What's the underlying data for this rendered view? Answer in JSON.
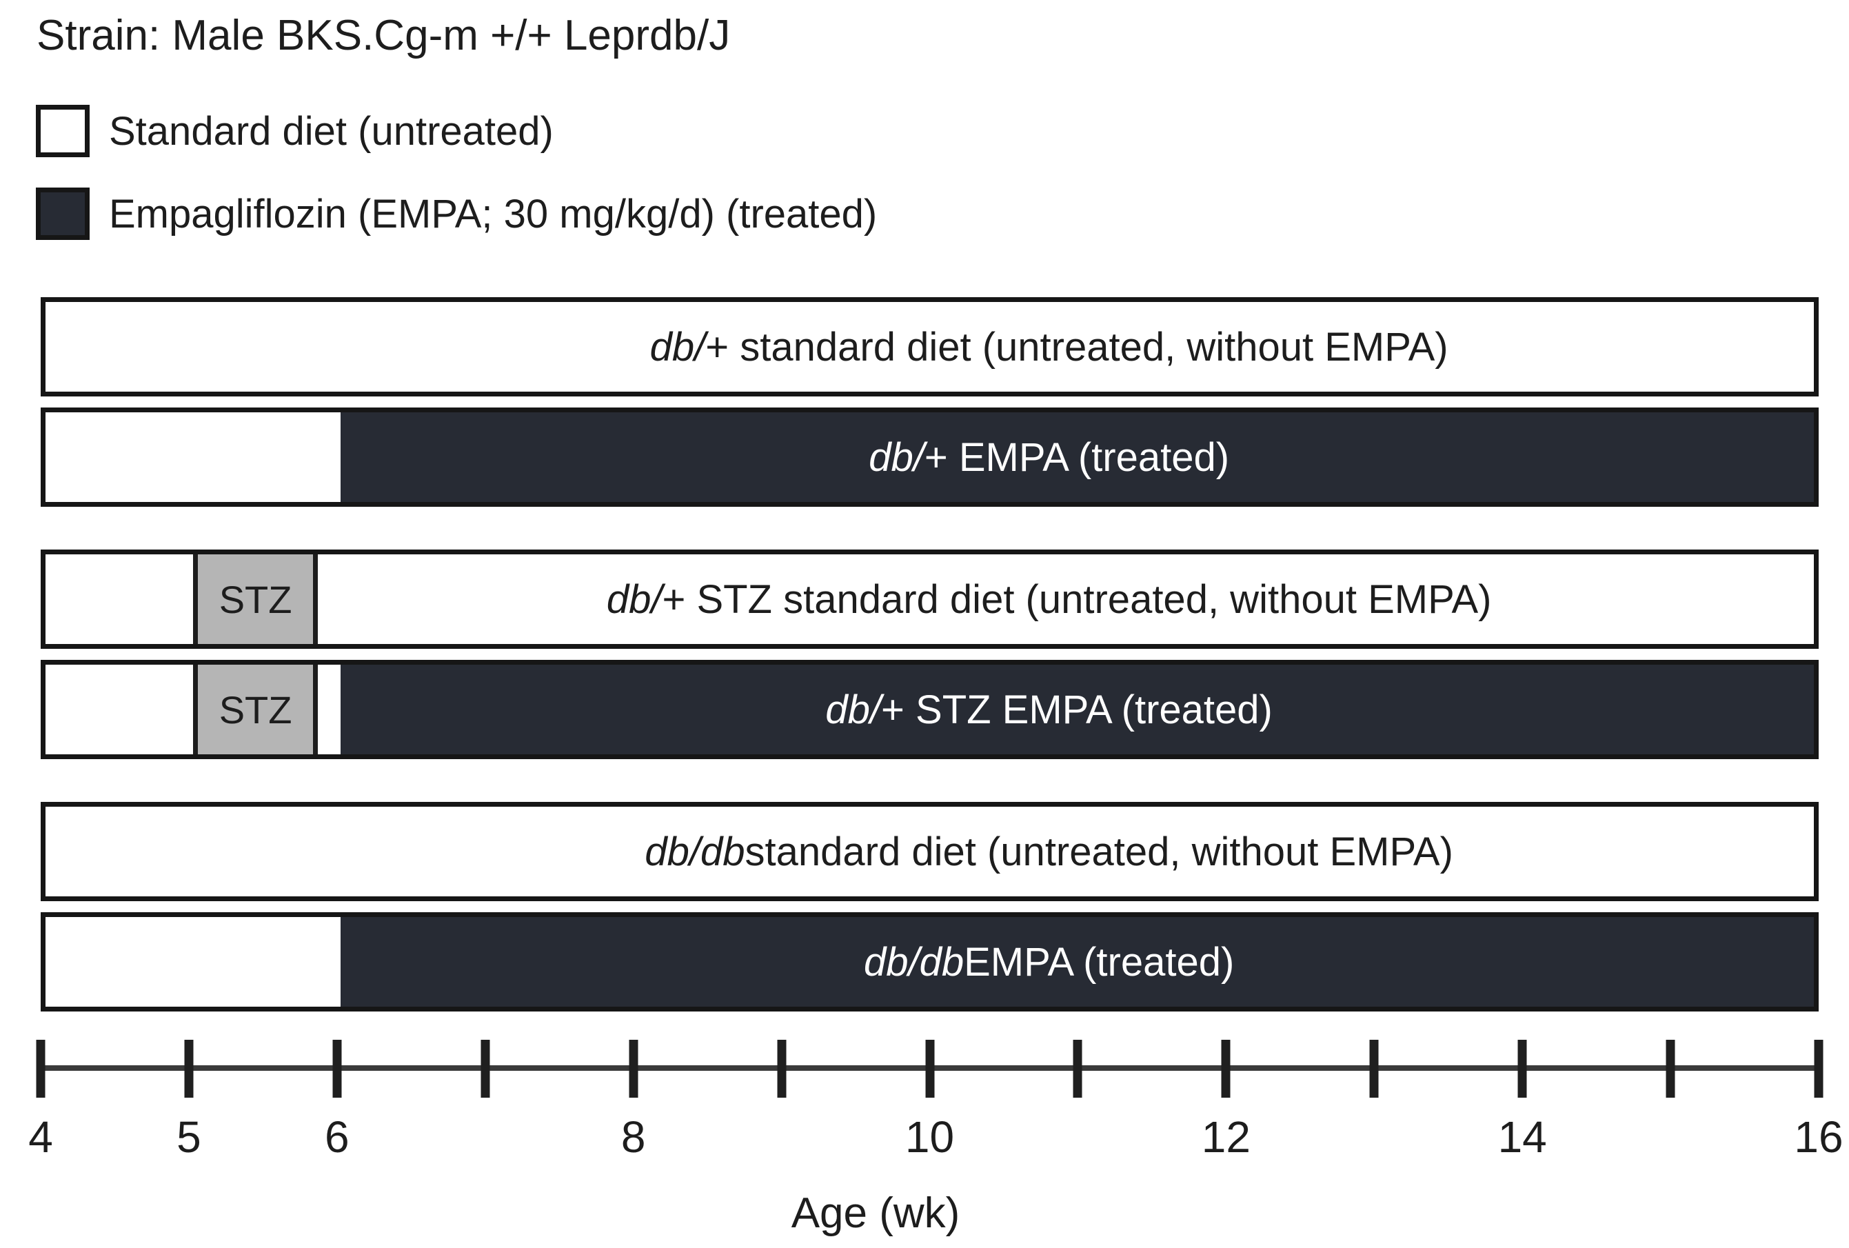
{
  "title": "Strain: Male BKS.Cg-m +/+ Leprdb/J",
  "colors": {
    "treated": "#272b34",
    "untreated": "#ffffff",
    "stz": "#b5b5b5",
    "border": "#161616",
    "text": "#1d1d1d"
  },
  "legend": [
    {
      "swatch": "untreated",
      "label": "Standard diet (untreated)"
    },
    {
      "swatch": "treated",
      "label": "Empagliflozin (EMPA; 30 mg/kg/d) (treated)"
    }
  ],
  "axis": {
    "label": "Age (wk)",
    "min": 4,
    "max": 16,
    "ticks": [
      4,
      5,
      6,
      7,
      8,
      9,
      10,
      11,
      12,
      13,
      14,
      15,
      16
    ],
    "labeled_ticks": [
      4,
      5,
      6,
      8,
      10,
      12,
      14,
      16
    ]
  },
  "groups": [
    {
      "section": 1,
      "label_runs": [
        {
          "text": "db/",
          "italic": true
        },
        {
          "text": "+ standard diet (untreated, without EMPA)",
          "italic": false
        }
      ],
      "segments": [
        {
          "type": "untreated",
          "from": 4,
          "to": 16
        }
      ]
    },
    {
      "section": 1,
      "label_runs": [
        {
          "text": "db/",
          "italic": true
        },
        {
          "text": "+ EMPA (treated)",
          "italic": false
        }
      ],
      "segments": [
        {
          "type": "untreated",
          "from": 4,
          "to": 6
        },
        {
          "type": "treated",
          "from": 6,
          "to": 16
        }
      ]
    },
    {
      "section": 2,
      "label_runs": [
        {
          "text": "db/",
          "italic": true
        },
        {
          "text": "+ STZ standard diet (untreated, without EMPA)",
          "italic": false
        }
      ],
      "segments": [
        {
          "type": "untreated",
          "from": 4,
          "to": 5
        },
        {
          "type": "stz",
          "from": 5,
          "to": 5.85,
          "text": "STZ"
        },
        {
          "type": "untreated",
          "from": 5.85,
          "to": 16
        }
      ]
    },
    {
      "section": 2,
      "label_runs": [
        {
          "text": "db/",
          "italic": true
        },
        {
          "text": "+ STZ EMPA (treated)",
          "italic": false
        }
      ],
      "segments": [
        {
          "type": "untreated",
          "from": 4,
          "to": 5
        },
        {
          "type": "stz",
          "from": 5,
          "to": 5.85,
          "text": "STZ"
        },
        {
          "type": "untreated",
          "from": 5.85,
          "to": 6
        },
        {
          "type": "treated",
          "from": 6,
          "to": 16
        }
      ]
    },
    {
      "section": 3,
      "label_runs": [
        {
          "text": "db/db",
          "italic": true
        },
        {
          "text": " standard diet (untreated, without EMPA)",
          "italic": false
        }
      ],
      "segments": [
        {
          "type": "untreated",
          "from": 4,
          "to": 16
        }
      ]
    },
    {
      "section": 3,
      "label_runs": [
        {
          "text": "db/db",
          "italic": true
        },
        {
          "text": " EMPA (treated)",
          "italic": false
        }
      ],
      "segments": [
        {
          "type": "untreated",
          "from": 4,
          "to": 6
        },
        {
          "type": "treated",
          "from": 6,
          "to": 16
        }
      ]
    }
  ]
}
